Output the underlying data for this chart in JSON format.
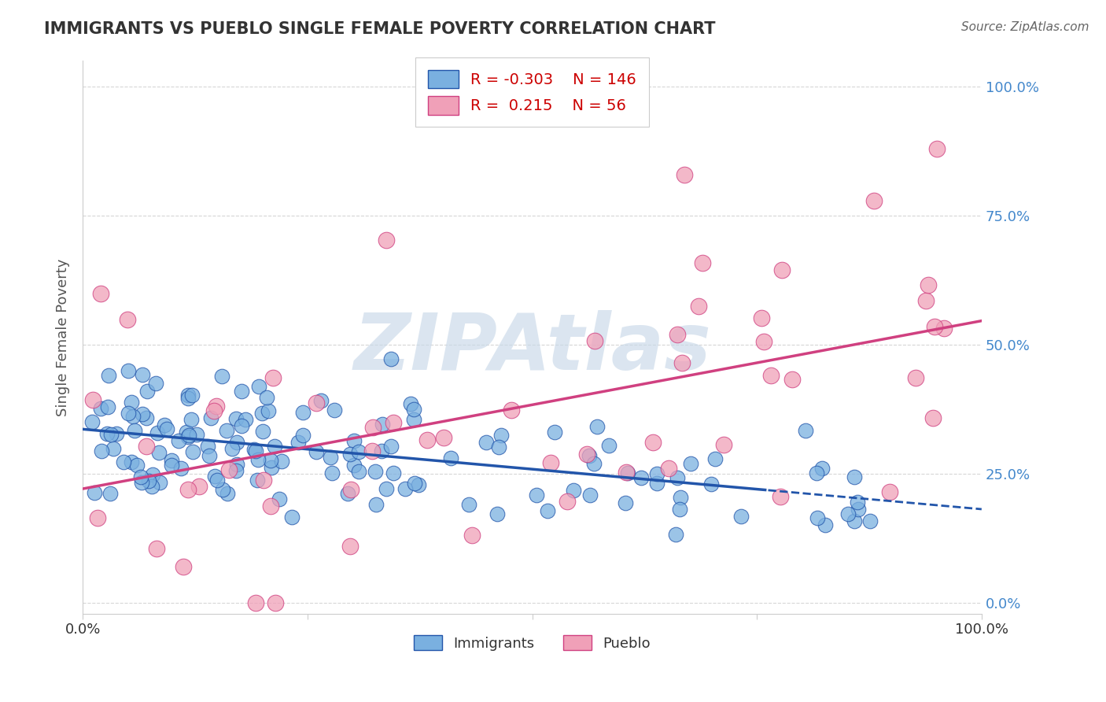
{
  "title": "IMMIGRANTS VS PUEBLO SINGLE FEMALE POVERTY CORRELATION CHART",
  "source": "Source: ZipAtlas.com",
  "ylabel": "Single Female Poverty",
  "xlim": [
    0.0,
    1.0
  ],
  "ylim": [
    -0.02,
    1.05
  ],
  "legend_immigrants": "Immigrants",
  "legend_pueblo": "Pueblo",
  "R_immigrants": -0.303,
  "N_immigrants": 146,
  "R_pueblo": 0.215,
  "N_pueblo": 56,
  "blue_color": "#7ab0e0",
  "blue_line_color": "#2255aa",
  "pink_color": "#f0a0b8",
  "pink_line_color": "#d04080",
  "watermark": "ZIPAtlas",
  "watermark_color": "#c8d8e8",
  "grid_color": "#cccccc",
  "background_color": "#ffffff",
  "title_color": "#333333",
  "axis_label_color": "#555555",
  "tick_label_color_right": "#4488cc",
  "legend_R_color": "#cc0000"
}
